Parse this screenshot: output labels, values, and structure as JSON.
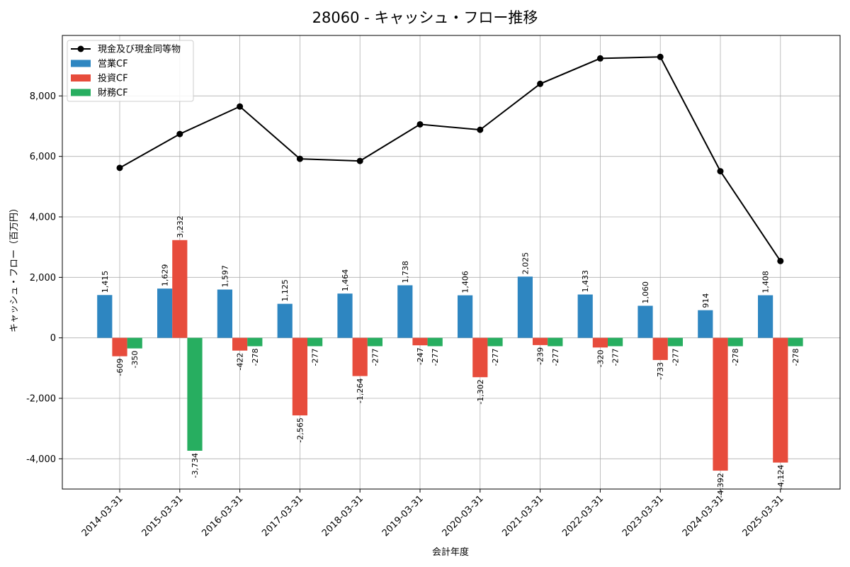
{
  "chart_data": {
    "type": "bar",
    "title": "28060 - キャッシュ・フロー推移",
    "xlabel": "会計年度",
    "ylabel": "キャッシュ・フロー（百万円）",
    "ylim": [
      -5000,
      10000
    ],
    "yticks": [
      -4000,
      -2000,
      0,
      2000,
      4000,
      6000,
      8000
    ],
    "ytick_labels": [
      "-4,000",
      "-2,000",
      "0",
      "2,000",
      "4,000",
      "6,000",
      "8,000"
    ],
    "grid": true,
    "legend_position": "top-left",
    "categories": [
      "2014-03-31",
      "2015-03-31",
      "2016-03-31",
      "2017-03-31",
      "2018-03-31",
      "2019-03-31",
      "2020-03-31",
      "2021-03-31",
      "2022-03-31",
      "2023-03-31",
      "2024-03-31",
      "2025-03-31"
    ],
    "series": [
      {
        "name": "営業CF",
        "kind": "bar",
        "color": "#2e86c1",
        "values": [
          1415,
          1629,
          1597,
          1125,
          1464,
          1738,
          1406,
          2025,
          1433,
          1060,
          914,
          1408
        ],
        "labels": [
          "1,415",
          "1,629",
          "1,597",
          "1,125",
          "1,464",
          "1,738",
          "1,406",
          "2,025",
          "1,433",
          "1,060",
          "914",
          "1,408"
        ]
      },
      {
        "name": "投資CF",
        "kind": "bar",
        "color": "#e74c3c",
        "values": [
          -609,
          3232,
          -422,
          -2565,
          -1264,
          -247,
          -1302,
          -239,
          -320,
          -733,
          -4392,
          -4124
        ],
        "labels": [
          "-609",
          "3,232",
          "-422",
          "-2,565",
          "-1,264",
          "-247",
          "-1,302",
          "-239",
          "-320",
          "-733",
          "-4,392",
          "-4,124"
        ]
      },
      {
        "name": "財務CF",
        "kind": "bar",
        "color": "#27ae60",
        "values": [
          -350,
          -3734,
          -278,
          -277,
          -277,
          -277,
          -277,
          -277,
          -277,
          -277,
          -278,
          -278
        ],
        "labels": [
          "-350",
          "-3,734",
          "-278",
          "-277",
          "-277",
          "-277",
          "-277",
          "-277",
          "-277",
          "-277",
          "-278",
          "-278"
        ]
      },
      {
        "name": "現金及び現金同等物",
        "kind": "line",
        "color": "#000000",
        "values": [
          5620,
          6740,
          7650,
          5920,
          5850,
          7060,
          6880,
          8400,
          9240,
          9290,
          5510,
          2540
        ]
      }
    ]
  }
}
